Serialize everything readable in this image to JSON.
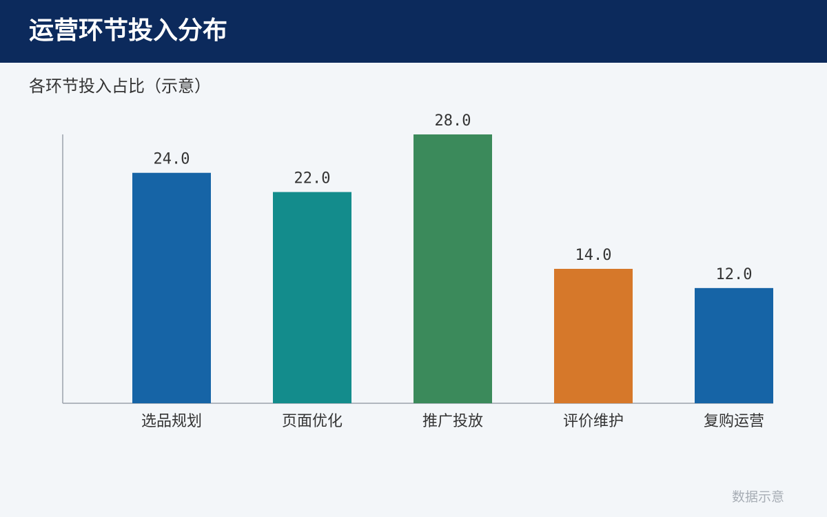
{
  "header": {
    "title": "运营环节投入分布"
  },
  "subtitle": "各环节投入占比（示意）",
  "footnote": "数据示意",
  "chart_data": {
    "type": "bar",
    "title": "",
    "xlabel": "",
    "ylabel": "",
    "ylim": [
      0,
      28
    ],
    "grid": false,
    "categories": [
      "选品规划",
      "页面优化",
      "推广投放",
      "评价维护",
      "复购运营"
    ],
    "values": [
      24.0,
      22.0,
      28.0,
      14.0,
      12.0
    ],
    "value_labels": [
      "24.0",
      "22.0",
      "28.0",
      "14.0",
      "12.0"
    ],
    "colors": [
      "#1664a6",
      "#138c8c",
      "#3b8a5b",
      "#d6782a",
      "#1664a6"
    ]
  }
}
